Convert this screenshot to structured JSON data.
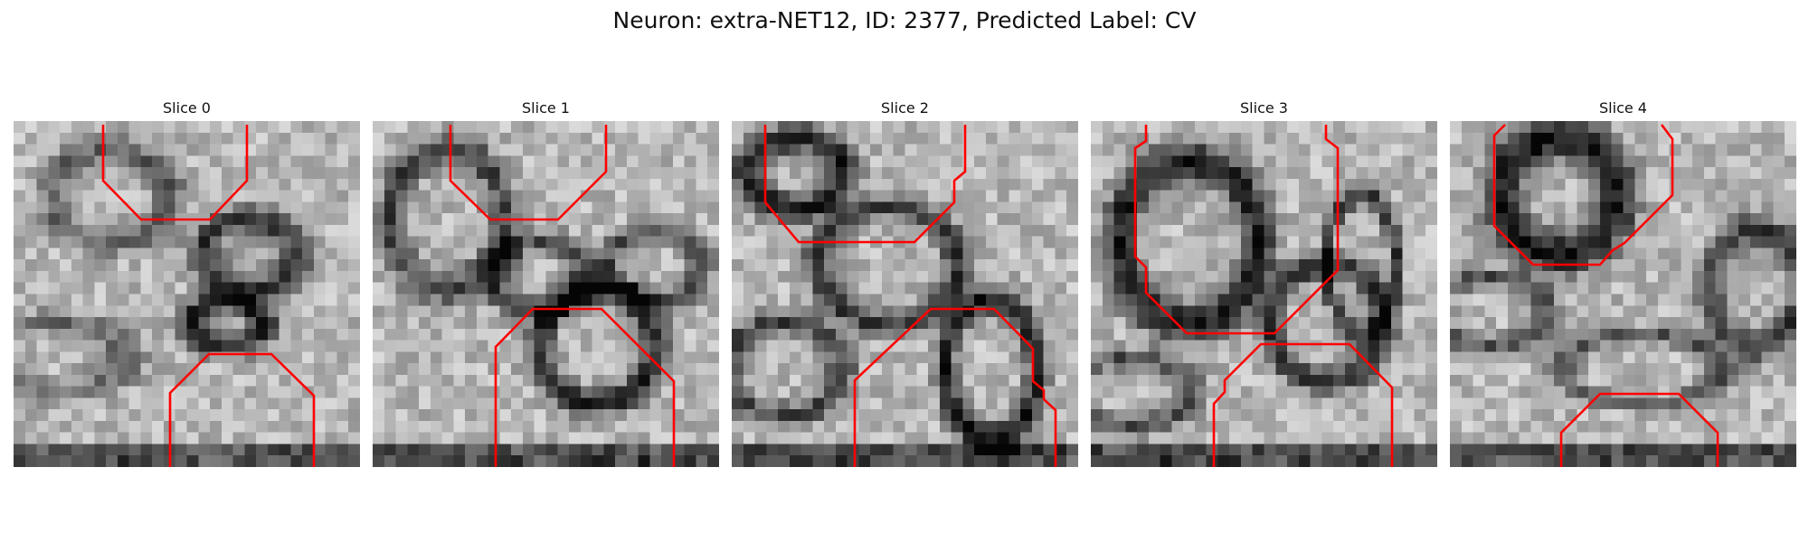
{
  "figure": {
    "title": "Neuron: extra-NET12, ID: 2377, Predicted Label: CV"
  },
  "slices": [
    {
      "title": "Slice 0"
    },
    {
      "title": "Slice 1"
    },
    {
      "title": "Slice 2"
    },
    {
      "title": "Slice 3"
    },
    {
      "title": "Slice 4"
    }
  ],
  "colors": {
    "contour": "#ff0000",
    "colormap": "gray"
  }
}
